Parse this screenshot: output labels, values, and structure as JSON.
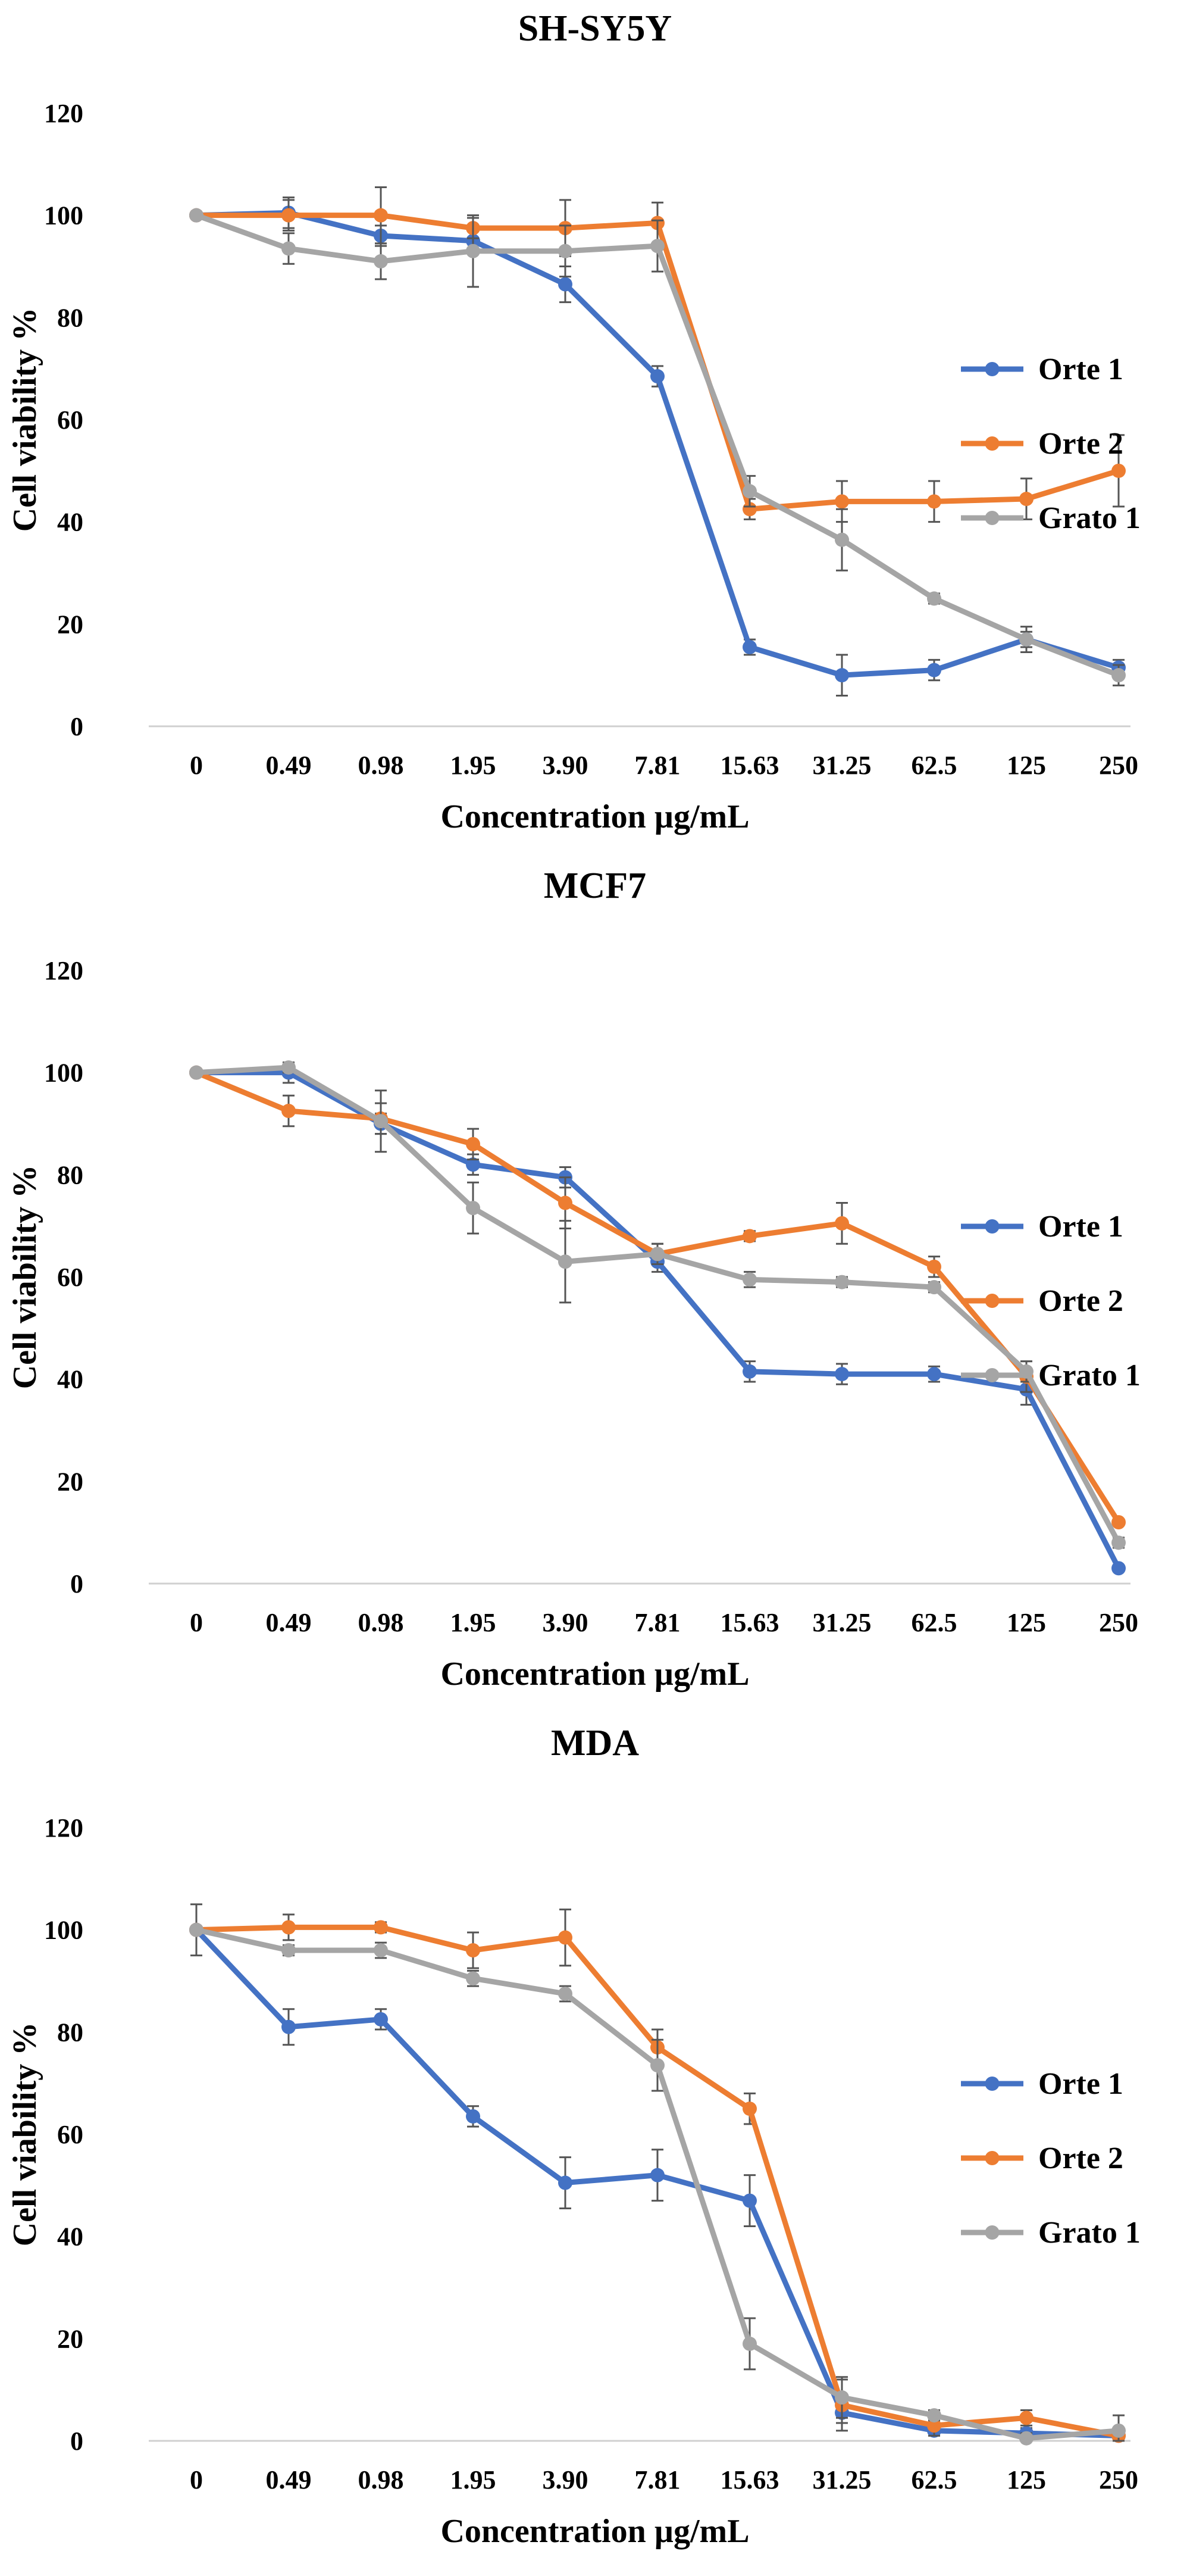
{
  "figure": {
    "series_names": [
      "Orte 1",
      "Orte 2",
      "Grato 1"
    ],
    "colors": {
      "Orte 1": "#4472C4",
      "Orte 2": "#ED7D31",
      "Grato 1": "#A5A5A5"
    }
  },
  "chart_data": [
    {
      "type": "line",
      "title": "SH-SY5Y",
      "xlabel": "Concentration µg/mL",
      "ylabel": "Cell viability %",
      "categories": [
        "0",
        "0.49",
        "0.98",
        "1.95",
        "3.90",
        "7.81",
        "15.63",
        "31.25",
        "62.5",
        "125",
        "250"
      ],
      "ylim": [
        0,
        120
      ],
      "yticks": [
        0,
        20,
        40,
        60,
        80,
        100,
        120
      ],
      "legend": "right",
      "series": [
        {
          "name": "Orte 1",
          "color": "#4472C4",
          "values": [
            100,
            100.5,
            96,
            95,
            86.5,
            68.5,
            15.5,
            10,
            11,
            17,
            11.5
          ],
          "errors": [
            0.5,
            3,
            2,
            2,
            3.5,
            2,
            1.5,
            4,
            2,
            1.5,
            1.5
          ]
        },
        {
          "name": "Orte 2",
          "color": "#ED7D31",
          "values": [
            100,
            100,
            100,
            97.5,
            97.5,
            98.5,
            42.5,
            44,
            44,
            44.5,
            50
          ],
          "errors": [
            0.5,
            3,
            5.5,
            2,
            5.5,
            4,
            2,
            4,
            4,
            4,
            7
          ]
        },
        {
          "name": "Grato 1",
          "color": "#A5A5A5",
          "values": [
            100,
            93.5,
            91,
            93,
            93,
            94,
            46,
            36.5,
            25,
            17,
            10
          ],
          "errors": [
            0.5,
            3,
            3.5,
            7,
            5,
            5,
            3,
            6,
            1,
            2.5,
            2
          ]
        }
      ]
    },
    {
      "type": "line",
      "title": "MCF7",
      "xlabel": "Concentration µg/mL",
      "ylabel": "Cell viability %",
      "categories": [
        "0",
        "0.49",
        "0.98",
        "1.95",
        "3.90",
        "7.81",
        "15.63",
        "31.25",
        "62.5",
        "125",
        "250"
      ],
      "ylim": [
        0,
        120
      ],
      "yticks": [
        0,
        20,
        40,
        60,
        80,
        100,
        120
      ],
      "legend": "right",
      "series": [
        {
          "name": "Orte 1",
          "color": "#4472C4",
          "values": [
            100,
            100,
            90,
            82,
            79.5,
            63,
            41.5,
            41,
            41,
            38,
            3
          ],
          "errors": [
            0.5,
            2,
            2,
            2,
            2,
            2,
            2,
            2,
            1.5,
            3,
            0.5
          ]
        },
        {
          "name": "Orte 2",
          "color": "#ED7D31",
          "values": [
            100,
            92.5,
            91,
            86,
            74.5,
            64.5,
            68,
            70.5,
            62,
            40.5,
            12
          ],
          "errors": [
            0.5,
            3,
            3,
            3,
            5,
            2,
            1,
            4,
            2,
            3,
            0.5
          ]
        },
        {
          "name": "Grato 1",
          "color": "#A5A5A5",
          "values": [
            100,
            101,
            90.5,
            73.5,
            63,
            64.5,
            59.5,
            59,
            58,
            41.5,
            8
          ],
          "errors": [
            0.5,
            1,
            6,
            5,
            8,
            2,
            1.5,
            1,
            1,
            2,
            1
          ]
        }
      ]
    },
    {
      "type": "line",
      "title": "MDA",
      "xlabel": "Concentration µg/mL",
      "ylabel": "Cell viability %",
      "categories": [
        "0",
        "0.49",
        "0.98",
        "1.95",
        "3.90",
        "7.81",
        "15.63",
        "31.25",
        "62.5",
        "125",
        "250"
      ],
      "ylim": [
        0,
        120
      ],
      "yticks": [
        0,
        20,
        40,
        60,
        80,
        100,
        120
      ],
      "legend": "right",
      "series": [
        {
          "name": "Orte 1",
          "color": "#4472C4",
          "values": [
            100,
            81,
            82.5,
            63.5,
            50.5,
            52,
            47,
            5.5,
            2,
            1.5,
            1
          ],
          "errors": [
            5,
            3.5,
            2,
            2,
            5,
            5,
            5,
            2,
            1,
            1,
            1
          ]
        },
        {
          "name": "Orte 2",
          "color": "#ED7D31",
          "values": [
            100,
            100.5,
            100.5,
            96,
            98.5,
            77,
            65,
            7,
            3,
            4.5,
            1
          ],
          "errors": [
            0.5,
            2.5,
            1,
            3.5,
            5.5,
            3.5,
            3,
            5,
            2,
            1.5,
            1
          ]
        },
        {
          "name": "Grato 1",
          "color": "#A5A5A5",
          "values": [
            100,
            96,
            96,
            90.5,
            87.5,
            73.5,
            19,
            8.5,
            5,
            0.5,
            2
          ],
          "errors": [
            0.5,
            1,
            1.5,
            1.5,
            1.5,
            5,
            5,
            4,
            1,
            1,
            3
          ]
        }
      ]
    }
  ]
}
